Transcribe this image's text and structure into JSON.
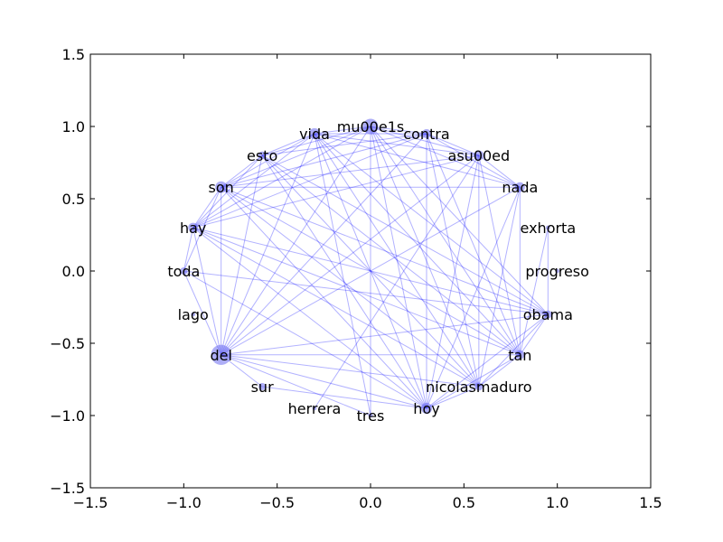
{
  "chart_data": {
    "type": "network",
    "title": "",
    "xlabel": "",
    "ylabel": "",
    "xlim": [
      -1.5,
      1.5
    ],
    "ylim": [
      -1.5,
      1.5
    ],
    "grid": false,
    "x_ticks": [
      "−1.5",
      "−1.0",
      "−0.5",
      "0.0",
      "0.5",
      "1.0",
      "1.5"
    ],
    "x_tick_values": [
      -1.5,
      -1.0,
      -0.5,
      0.0,
      0.5,
      1.0,
      1.5
    ],
    "y_ticks": [
      "1.5",
      "1.0",
      "0.5",
      "0.0",
      "−0.5",
      "−1.0",
      "−1.5"
    ],
    "y_tick_values": [
      1.5,
      1.0,
      0.5,
      0.0,
      -0.5,
      -1.0,
      -1.5
    ],
    "colors": {
      "node": "#6b6bf0",
      "edge": "#0000ff",
      "axis": "#000000"
    },
    "nodes": [
      {
        "id": "mu00e1s",
        "x": 0.0,
        "y": 1.0,
        "size": 2.2
      },
      {
        "id": "contra",
        "x": 0.3,
        "y": 0.95,
        "size": 1.2
      },
      {
        "id": "asu00ed",
        "x": 0.58,
        "y": 0.8,
        "size": 1.3
      },
      {
        "id": "nada",
        "x": 0.8,
        "y": 0.58,
        "size": 1.3
      },
      {
        "id": "exhorta",
        "x": 0.95,
        "y": 0.3,
        "size": 0.4
      },
      {
        "id": "progreso",
        "x": 1.0,
        "y": 0.0,
        "size": 0.4
      },
      {
        "id": "obama",
        "x": 0.95,
        "y": -0.3,
        "size": 1.0
      },
      {
        "id": "tan",
        "x": 0.8,
        "y": -0.58,
        "size": 1.2
      },
      {
        "id": "nicolasmaduro",
        "x": 0.58,
        "y": -0.8,
        "size": 1.0
      },
      {
        "id": "hoy",
        "x": 0.3,
        "y": -0.95,
        "size": 1.5
      },
      {
        "id": "tres",
        "x": 0.0,
        "y": -1.0,
        "size": 0.4
      },
      {
        "id": "herrera",
        "x": -0.3,
        "y": -0.95,
        "size": 0.4
      },
      {
        "id": "sur",
        "x": -0.58,
        "y": -0.8,
        "size": 0.9
      },
      {
        "id": "del",
        "x": -0.8,
        "y": -0.58,
        "size": 3.0
      },
      {
        "id": "lago",
        "x": -0.95,
        "y": -0.3,
        "size": 0.4
      },
      {
        "id": "toda",
        "x": -1.0,
        "y": 0.0,
        "size": 0.9
      },
      {
        "id": "hay",
        "x": -0.95,
        "y": 0.3,
        "size": 1.3
      },
      {
        "id": "son",
        "x": -0.8,
        "y": 0.58,
        "size": 1.6
      },
      {
        "id": "esto",
        "x": -0.58,
        "y": 0.8,
        "size": 1.0
      },
      {
        "id": "vida",
        "x": -0.3,
        "y": 0.95,
        "size": 1.5
      }
    ],
    "edges": [
      [
        "mu00e1s",
        "contra"
      ],
      [
        "mu00e1s",
        "asu00ed"
      ],
      [
        "mu00e1s",
        "nada"
      ],
      [
        "mu00e1s",
        "obama"
      ],
      [
        "mu00e1s",
        "tan"
      ],
      [
        "mu00e1s",
        "hoy"
      ],
      [
        "mu00e1s",
        "tres"
      ],
      [
        "mu00e1s",
        "del"
      ],
      [
        "mu00e1s",
        "hay"
      ],
      [
        "mu00e1s",
        "son"
      ],
      [
        "mu00e1s",
        "esto"
      ],
      [
        "mu00e1s",
        "vida"
      ],
      [
        "mu00e1s",
        "nicolasmaduro"
      ],
      [
        "contra",
        "asu00ed"
      ],
      [
        "contra",
        "nada"
      ],
      [
        "contra",
        "tan"
      ],
      [
        "contra",
        "hoy"
      ],
      [
        "contra",
        "del"
      ],
      [
        "contra",
        "son"
      ],
      [
        "contra",
        "esto"
      ],
      [
        "contra",
        "vida"
      ],
      [
        "contra",
        "hay"
      ],
      [
        "contra",
        "nicolasmaduro"
      ],
      [
        "asu00ed",
        "nada"
      ],
      [
        "asu00ed",
        "nicolasmaduro"
      ],
      [
        "asu00ed",
        "hoy"
      ],
      [
        "asu00ed",
        "del"
      ],
      [
        "asu00ed",
        "son"
      ],
      [
        "asu00ed",
        "vida"
      ],
      [
        "asu00ed",
        "hay"
      ],
      [
        "asu00ed",
        "tan"
      ],
      [
        "nada",
        "tan"
      ],
      [
        "nada",
        "hoy"
      ],
      [
        "nada",
        "del"
      ],
      [
        "nada",
        "son"
      ],
      [
        "nada",
        "vida"
      ],
      [
        "nada",
        "nicolasmaduro"
      ],
      [
        "exhorta",
        "obama"
      ],
      [
        "exhorta",
        "tan"
      ],
      [
        "obama",
        "tan"
      ],
      [
        "obama",
        "nicolasmaduro"
      ],
      [
        "obama",
        "hoy"
      ],
      [
        "obama",
        "del"
      ],
      [
        "obama",
        "son"
      ],
      [
        "obama",
        "hay"
      ],
      [
        "obama",
        "vida"
      ],
      [
        "obama",
        "esto"
      ],
      [
        "obama",
        "toda"
      ],
      [
        "tan",
        "nicolasmaduro"
      ],
      [
        "tan",
        "hoy"
      ],
      [
        "tan",
        "del"
      ],
      [
        "tan",
        "son"
      ],
      [
        "tan",
        "hay"
      ],
      [
        "tan",
        "vida"
      ],
      [
        "tan",
        "esto"
      ],
      [
        "nicolasmaduro",
        "hoy"
      ],
      [
        "nicolasmaduro",
        "del"
      ],
      [
        "nicolasmaduro",
        "hay"
      ],
      [
        "nicolasmaduro",
        "son"
      ],
      [
        "nicolasmaduro",
        "esto"
      ],
      [
        "nicolasmaduro",
        "vida"
      ],
      [
        "hoy",
        "del"
      ],
      [
        "hoy",
        "hay"
      ],
      [
        "hoy",
        "son"
      ],
      [
        "hoy",
        "esto"
      ],
      [
        "hoy",
        "vida"
      ],
      [
        "hoy",
        "toda"
      ],
      [
        "hoy",
        "sur"
      ],
      [
        "tres",
        "vida"
      ],
      [
        "tres",
        "del"
      ],
      [
        "herrera",
        "asu00ed"
      ],
      [
        "sur",
        "del"
      ],
      [
        "del",
        "hay"
      ],
      [
        "del",
        "son"
      ],
      [
        "del",
        "esto"
      ],
      [
        "del",
        "vida"
      ],
      [
        "del",
        "toda"
      ],
      [
        "toda",
        "hay"
      ],
      [
        "toda",
        "son"
      ],
      [
        "hay",
        "son"
      ],
      [
        "hay",
        "esto"
      ],
      [
        "hay",
        "vida"
      ],
      [
        "son",
        "esto"
      ],
      [
        "son",
        "vida"
      ],
      [
        "esto",
        "vida"
      ]
    ]
  }
}
